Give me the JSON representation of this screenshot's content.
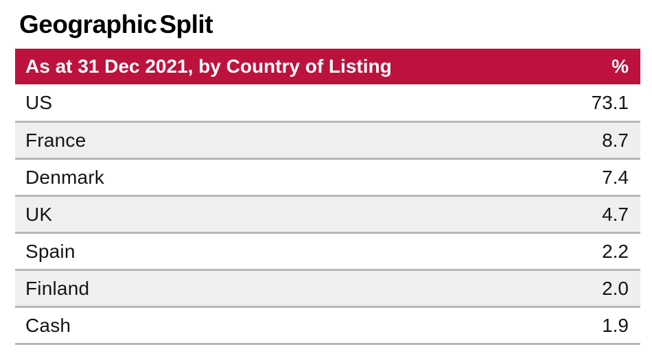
{
  "title": "Geographic Split",
  "table": {
    "header": {
      "label": "As at 31 Dec 2021, by Country of Listing",
      "value_label": "%"
    },
    "rows": [
      {
        "label": "US",
        "value": "73.1"
      },
      {
        "label": "France",
        "value": "8.7"
      },
      {
        "label": "Denmark",
        "value": "7.4"
      },
      {
        "label": "UK",
        "value": "4.7"
      },
      {
        "label": "Spain",
        "value": "2.2"
      },
      {
        "label": "Finland",
        "value": "2.0"
      },
      {
        "label": "Cash",
        "value": "1.9"
      }
    ]
  },
  "colors": {
    "accent": "#bd123d",
    "header_text": "#ffffff",
    "row_alt_background": "#efefee",
    "divider": "#b7b7b7",
    "text": "#141414"
  },
  "chart_data": {
    "type": "table",
    "title": "Geographic Split",
    "columns": [
      "As at 31 Dec 2021, by Country of Listing",
      "%"
    ],
    "categories": [
      "US",
      "France",
      "Denmark",
      "UK",
      "Spain",
      "Finland",
      "Cash"
    ],
    "values": [
      73.1,
      8.7,
      7.4,
      4.7,
      2.2,
      2.0,
      1.9
    ]
  }
}
